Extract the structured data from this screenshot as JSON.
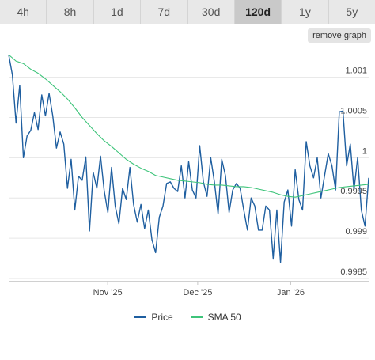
{
  "tabs": [
    {
      "label": "4h",
      "active": false
    },
    {
      "label": "8h",
      "active": false
    },
    {
      "label": "1d",
      "active": false
    },
    {
      "label": "7d",
      "active": false
    },
    {
      "label": "30d",
      "active": false
    },
    {
      "label": "120d",
      "active": true
    },
    {
      "label": "1y",
      "active": false
    },
    {
      "label": "5y",
      "active": false
    }
  ],
  "remove_graph_label": "remove graph",
  "chart_data": {
    "type": "line",
    "x_start": "2025-09-29",
    "x_end": "2026-01-27",
    "xlim": [
      "2025-09-29",
      "2026-01-27"
    ],
    "x_ticks": [
      {
        "label": "Nov '25",
        "date": "2025-11-01"
      },
      {
        "label": "Dec '25",
        "date": "2025-12-01"
      },
      {
        "label": "Jan '26",
        "date": "2026-01-01"
      }
    ],
    "y_ticks": [
      {
        "label": "1.001",
        "value": 1.001
      },
      {
        "label": "1.0005",
        "value": 1.0005
      },
      {
        "label": "1",
        "value": 1.0
      },
      {
        "label": "0.9995",
        "value": 0.9995
      },
      {
        "label": "0.999",
        "value": 0.999
      },
      {
        "label": "0.9985",
        "value": 0.9985
      }
    ],
    "ylim": [
      0.99847,
      1.00135
    ],
    "grid": "horizontal",
    "legend_position": "bottom",
    "colors": {
      "price": "#1f5fa0",
      "sma": "#3ec47a",
      "grid": "#e6e6e6"
    },
    "series": [
      {
        "name": "Price",
        "color": "#1f5fa0",
        "values": [
          1.00128,
          1.00103,
          1.00043,
          1.0009,
          1.0,
          1.00027,
          1.00034,
          1.00056,
          1.00035,
          1.00078,
          1.00052,
          1.0008,
          1.00052,
          1.00012,
          1.00032,
          1.00017,
          0.99962,
          0.99998,
          0.99935,
          0.99977,
          0.99972,
          1.00001,
          0.99909,
          0.99982,
          0.99962,
          1.00002,
          0.99959,
          0.99932,
          0.99988,
          0.9994,
          0.99918,
          0.99962,
          0.99948,
          0.99988,
          0.99942,
          0.9992,
          0.99942,
          0.99912,
          0.99935,
          0.99898,
          0.99882,
          0.99926,
          0.9994,
          0.99968,
          0.9997,
          0.99962,
          0.99958,
          0.9999,
          0.9995,
          0.99995,
          0.9996,
          0.9995,
          1.00015,
          0.9997,
          0.99952,
          1.0,
          0.9997,
          0.9993,
          0.99998,
          0.99978,
          0.99932,
          0.9996,
          0.99968,
          0.99962,
          0.99935,
          0.9991,
          0.9995,
          0.9994,
          0.9991,
          0.9991,
          0.9994,
          0.99935,
          0.99875,
          0.99935,
          0.9987,
          0.99945,
          0.9996,
          0.99915,
          0.99985,
          0.99948,
          0.99935,
          1.0002,
          0.9999,
          0.99975,
          1.0,
          0.9995,
          0.99978,
          1.00005,
          0.9999,
          0.9996,
          1.00057,
          1.00058,
          0.9999,
          1.00017,
          0.9996,
          1.0,
          0.99935,
          0.99915,
          0.99975
        ]
      },
      {
        "name": "SMA 50",
        "color": "#3ec47a",
        "values": [
          1.00128,
          1.0012,
          1.00117,
          1.0011,
          1.00105,
          1.00098,
          1.0009,
          1.00082,
          1.00073,
          1.00062,
          1.0005,
          1.0004,
          1.0003,
          1.00021,
          1.00014,
          1.00006,
          0.99998,
          0.99992,
          0.99987,
          0.99983,
          0.99978,
          0.99976,
          0.99974,
          0.99972,
          0.99971,
          0.9997,
          0.99969,
          0.99967,
          0.99966,
          0.99966,
          0.99965,
          0.99964,
          0.99964,
          0.99963,
          0.99961,
          0.99959,
          0.99957,
          0.99954,
          0.99952,
          0.99951,
          0.99953,
          0.99955,
          0.99957,
          0.99959,
          0.99961,
          0.99963,
          0.99964,
          0.99965,
          0.99966,
          0.99967
        ]
      }
    ]
  }
}
